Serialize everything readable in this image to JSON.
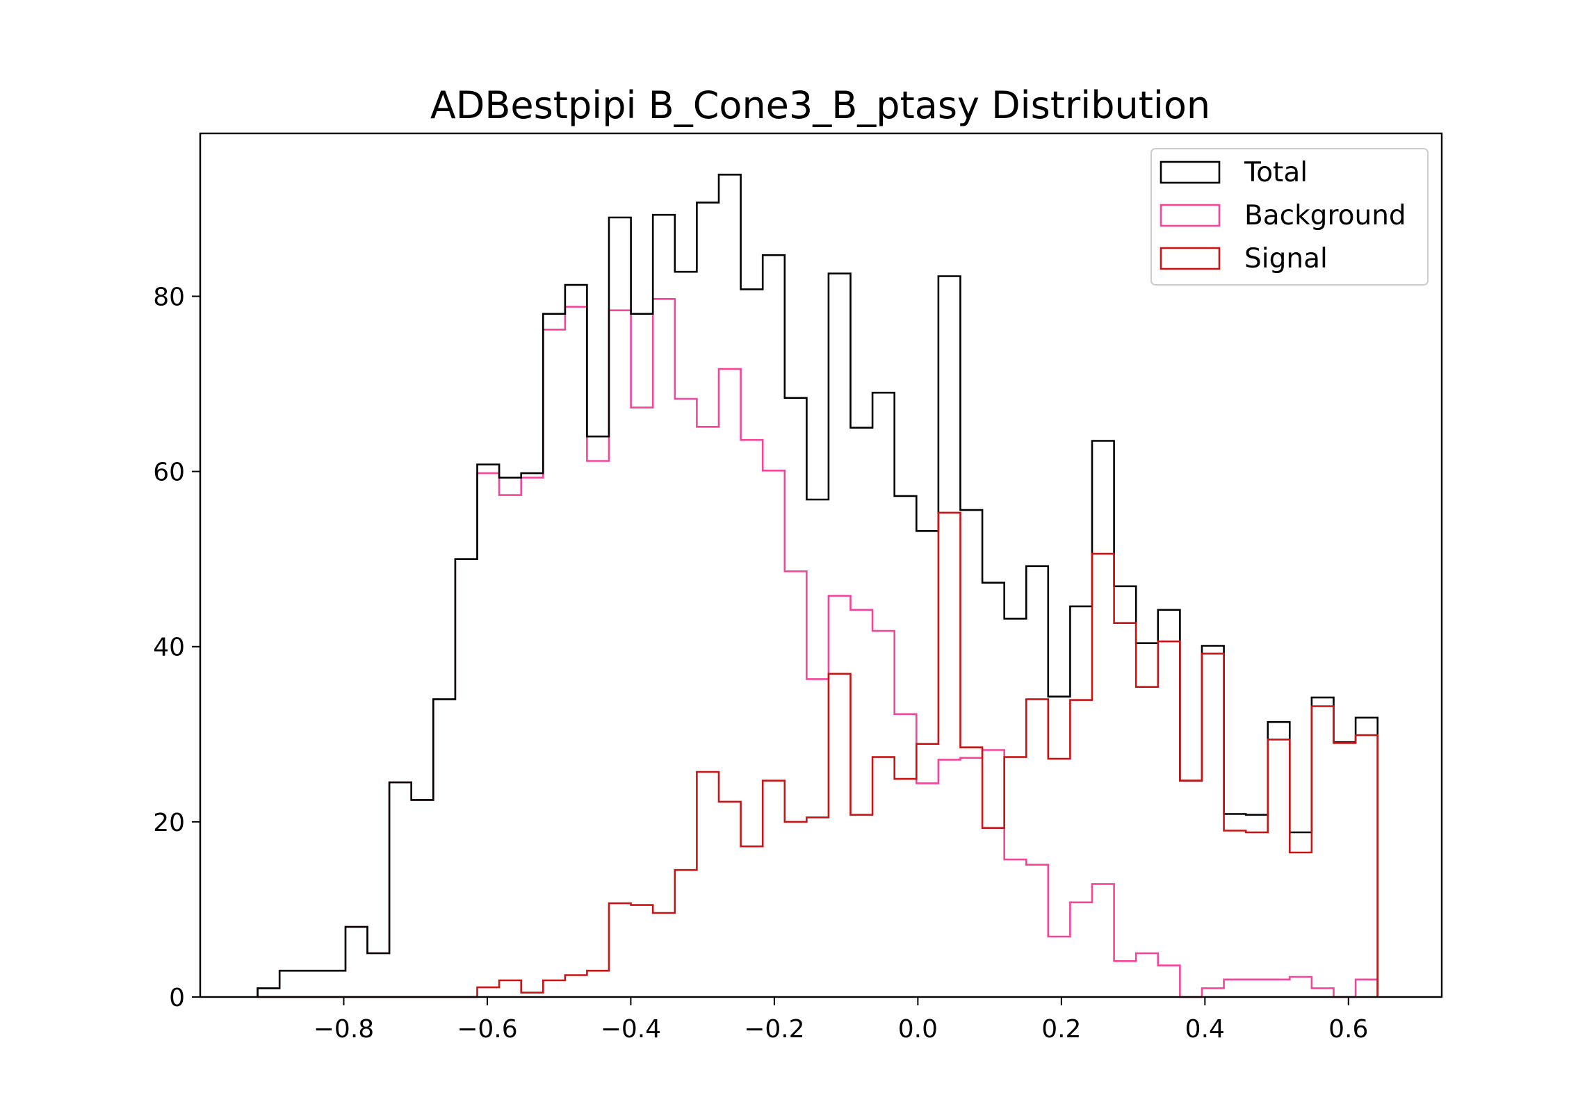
{
  "chart_data": {
    "type": "histogram-step",
    "title": "ADBestpipi B_Cone3_B_ptasy Distribution",
    "xlabel": "",
    "ylabel": "",
    "xlim": [
      -1.0,
      0.73
    ],
    "ylim": [
      0,
      98.6
    ],
    "xticks": [
      -0.8,
      -0.6,
      -0.4,
      -0.2,
      0.0,
      0.2,
      0.4,
      0.6
    ],
    "xtick_labels": [
      "−0.8",
      "−0.6",
      "−0.4",
      "−0.2",
      "0.0",
      "0.2",
      "0.4",
      "0.6"
    ],
    "yticks": [
      0,
      20,
      40,
      60,
      80
    ],
    "ytick_labels": [
      "0",
      "20",
      "40",
      "60",
      "80"
    ],
    "grid": false,
    "legend_position": "top-right",
    "bin_start": -0.92,
    "bin_width": 0.0306,
    "series": [
      {
        "name": "Total",
        "color": "#000000",
        "values": [
          1,
          3,
          3,
          3,
          8,
          5,
          24.5,
          22.5,
          34,
          50,
          60.8,
          59.3,
          59.8,
          78,
          81.3,
          64,
          89,
          78,
          89.3,
          82.8,
          90.7,
          93.9,
          80.8,
          84.7,
          68.4,
          56.8,
          82.6,
          65,
          69,
          57.2,
          53.2,
          82.3,
          55.6,
          47.3,
          43.2,
          49.2,
          34.3,
          44.6,
          63.5,
          46.9,
          40.4,
          44.2,
          24.7,
          40.1,
          20.9,
          20.8,
          31.4,
          18.8,
          34.2,
          29.1,
          31.9
        ]
      },
      {
        "name": "Background",
        "color": "#f5449a",
        "values": [
          1,
          3,
          3,
          3,
          8,
          5,
          24.5,
          22.5,
          34,
          50,
          59.8,
          57.3,
          59.3,
          76.2,
          78.8,
          61.2,
          78.4,
          67.3,
          79.7,
          68.3,
          65.1,
          71.7,
          63.6,
          60.1,
          48.6,
          36.3,
          45.8,
          44.2,
          41.8,
          32.3,
          24.4,
          27.1,
          27.3,
          28.2,
          15.7,
          15.1,
          6.9,
          10.8,
          12.9,
          4.1,
          5,
          3.6,
          0,
          1,
          2,
          2,
          2,
          2.3,
          1,
          0,
          2
        ]
      },
      {
        "name": "Signal",
        "color": "#c81414",
        "values": [
          0,
          0,
          0,
          0,
          0,
          0,
          0,
          0,
          0,
          0,
          1.1,
          1.9,
          0.5,
          1.9,
          2.5,
          3,
          10.7,
          10.5,
          9.6,
          14.5,
          25.7,
          22.3,
          17.2,
          24.7,
          20,
          20.5,
          36.9,
          20.8,
          27.4,
          24.9,
          28.9,
          55.3,
          28.5,
          19.3,
          27.4,
          34,
          27.2,
          33.9,
          50.6,
          42.7,
          35.4,
          40.6,
          24.7,
          39.2,
          19,
          18.8,
          29.4,
          16.5,
          33.2,
          29,
          29.9
        ]
      }
    ]
  }
}
